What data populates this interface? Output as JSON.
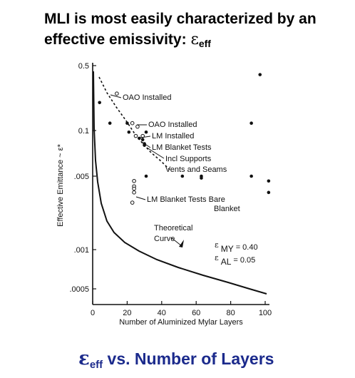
{
  "heading": {
    "line1": "MLI is most easily characterized by an",
    "line2_text": "effective emissivity: ",
    "symbol": "ε",
    "subscript": "eff"
  },
  "footer": {
    "symbol": "ε",
    "subscript": "eff",
    "text": " vs. Number of Layers",
    "color": "#1b2a8c"
  },
  "chart_data": {
    "type": "scatter",
    "xlabel": "Number of Aluminized Mylar Layers",
    "ylabel": "Effective Emittance ~ ε*",
    "x_ticks": [
      "0",
      "20",
      "40",
      "60",
      "80",
      "100"
    ],
    "y_ticks": [
      "0.5",
      "0.1",
      ".005",
      ".001",
      ".0005"
    ],
    "xlim": [
      0,
      102
    ],
    "points": [
      {
        "x": 4,
        "y": "0.2",
        "marker": "filled"
      },
      {
        "x": 10,
        "y": "0.12",
        "marker": "filled"
      },
      {
        "x": 20,
        "y": "0.12",
        "marker": "filled"
      },
      {
        "x": 21,
        "y": "0.09",
        "marker": "filled"
      },
      {
        "x": 25,
        "y": "0.07",
        "marker": "filled"
      },
      {
        "x": 27,
        "y": "0.06",
        "marker": "filled"
      },
      {
        "x": 29,
        "y": "0.055",
        "marker": "filled"
      },
      {
        "x": 30,
        "y": "0.042",
        "marker": "filled"
      },
      {
        "x": 30,
        "y": "0.038",
        "marker": "filled"
      },
      {
        "x": 31,
        "y": "0.005",
        "marker": "filled"
      },
      {
        "x": 31,
        "y": "0.09",
        "marker": "filled"
      },
      {
        "x": 52,
        "y": "0.005",
        "marker": "filled"
      },
      {
        "x": 63,
        "y": "0.005",
        "marker": "filled"
      },
      {
        "x": 63,
        "y": "0.0048",
        "marker": "filled"
      },
      {
        "x": 92,
        "y": "0.12",
        "marker": "filled"
      },
      {
        "x": 92,
        "y": "0.005",
        "marker": "filled"
      },
      {
        "x": 97,
        "y": "0.4",
        "marker": "filled"
      },
      {
        "x": 102,
        "y": "0.0045",
        "marker": "filled"
      },
      {
        "x": 102,
        "y": "0.0035",
        "marker": "filled"
      },
      {
        "x": 14,
        "y": "0.25",
        "marker": "open"
      },
      {
        "x": 23,
        "y": "0.12",
        "marker": "open"
      },
      {
        "x": 25,
        "y": "0.07",
        "marker": "open"
      },
      {
        "x": 26,
        "y": "0.11",
        "marker": "open"
      },
      {
        "x": 29,
        "y": "0.07",
        "marker": "open"
      },
      {
        "x": 24,
        "y": "0.0045",
        "marker": "open"
      },
      {
        "x": 24,
        "y": "0.004",
        "marker": "open"
      },
      {
        "x": 24,
        "y": "0.0038",
        "marker": "open"
      },
      {
        "x": 24,
        "y": "0.0035",
        "marker": "open"
      },
      {
        "x": 23,
        "y": "0.0028",
        "marker": "open"
      }
    ],
    "series": [
      {
        "name": "Theoretical Curve",
        "style": "solid"
      },
      {
        "name": "",
        "style": "dashed"
      }
    ],
    "annotations": [
      "OAO Installed",
      "OAO Installed",
      "LM Installed",
      "LM Blanket Tests",
      "Incl Supports",
      "Vents and Seams",
      "LM Blanket Tests Bare",
      "Blanket",
      "Theoretical",
      "Curve"
    ],
    "emissivity_labels": [
      {
        "symbol": "ε",
        "sub": "MY",
        "value": "= 0.40"
      },
      {
        "symbol": "ε",
        "sub": "AL",
        "value": "= 0.05"
      }
    ]
  }
}
